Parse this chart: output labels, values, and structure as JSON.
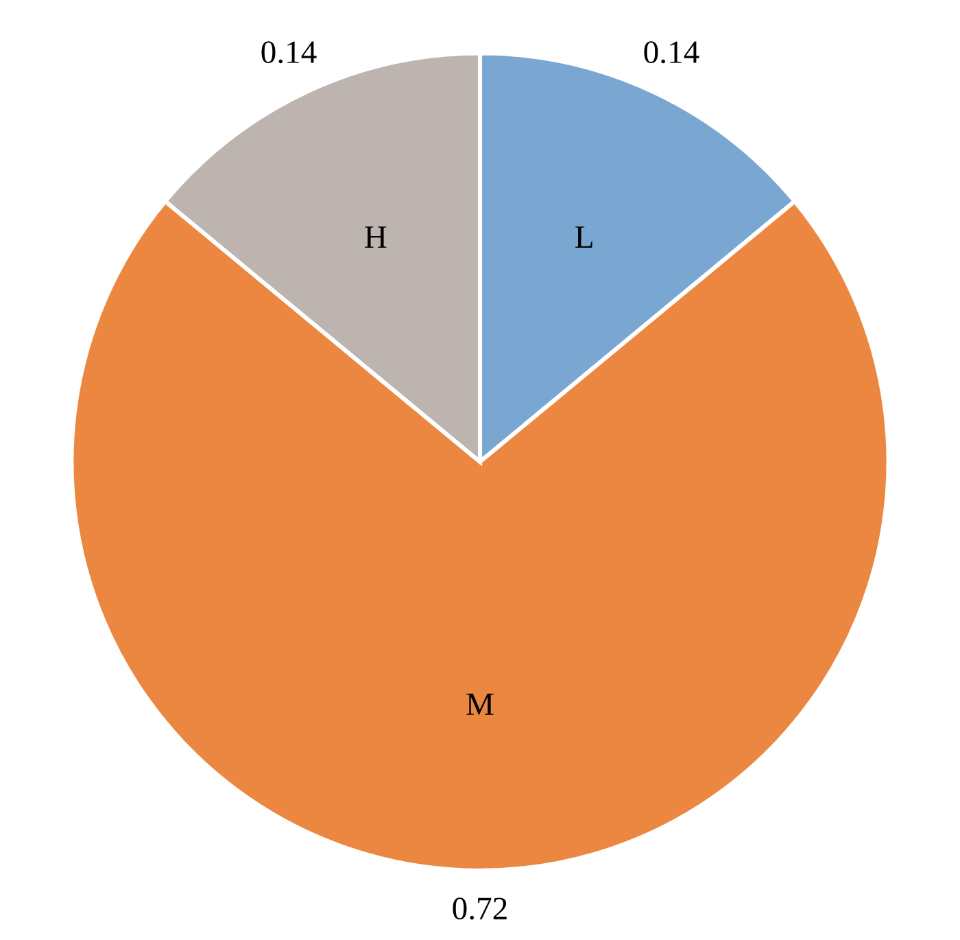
{
  "chart_data": {
    "type": "pie",
    "categories": [
      "L",
      "M",
      "H"
    ],
    "values": [
      0.14,
      0.72,
      0.14
    ],
    "colors": [
      "#79a7d2",
      "#eb8741",
      "#bdb4b0"
    ],
    "data_labels": true
  }
}
